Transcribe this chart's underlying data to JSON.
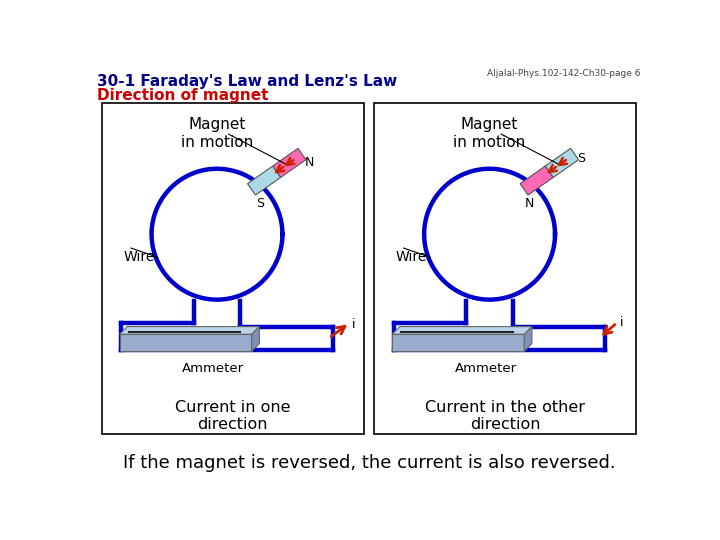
{
  "title_line1": "30-1 Faraday's Law and Lenz's Law",
  "title_line2": "Direction of magnet",
  "header_ref": "Aljalal-Phys.102-142-Ch30-page 6",
  "bottom_text": "If the magnet is reversed, the current is also reversed.",
  "panel1_title": "Magnet\nin motion",
  "panel2_title": "Magnet\nin motion",
  "panel1_caption": "Current in one\ndirection",
  "panel2_caption": "Current in the other\ndirection",
  "wire_label": "Wire",
  "ammeter_label": "Ammeter",
  "current_label": "i",
  "n_label": "N",
  "s_label": "S",
  "bg_color": "#ffffff",
  "panel_border": "#000000",
  "wire_color": "#0000cc",
  "magnet_n_color": "#ff69b4",
  "magnet_s_color": "#add8e6",
  "arrow_color": "#cc2200",
  "ammeter_top_color": "#b8d4e8",
  "ammeter_front_color": "#9aaccc",
  "ammeter_right_color": "#8090b8",
  "title_color1": "#00008B",
  "title_color2": "#cc0000",
  "text_color": "#000000"
}
